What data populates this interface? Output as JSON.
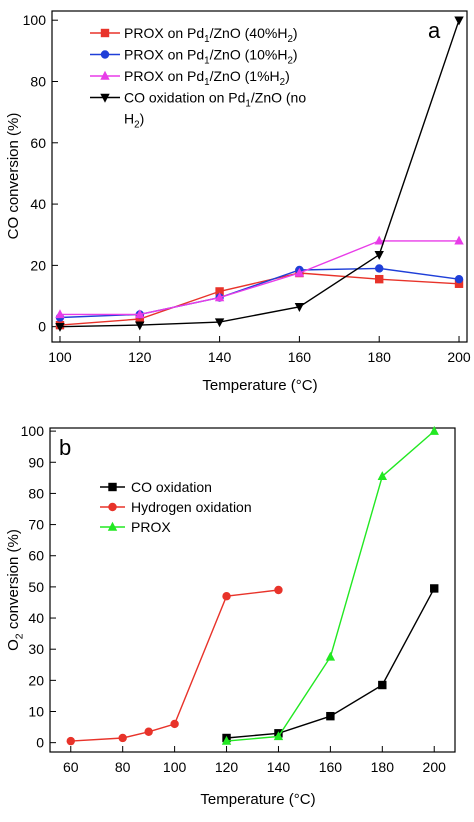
{
  "chart_data": [
    {
      "type": "line",
      "panel_label": "a",
      "xlabel": "Temperature (°C)",
      "ylabel": "CO conversion (%)",
      "xlim": [
        98,
        202
      ],
      "ylim": [
        -5,
        103
      ],
      "xticks": [
        100,
        120,
        140,
        160,
        180,
        200
      ],
      "yticks": [
        0,
        20,
        40,
        60,
        80,
        100
      ],
      "grid": false,
      "legend_position": "top-left",
      "series": [
        {
          "name": "PROX on Pd1/ZnO (40%H2)",
          "color": "#e8332a",
          "marker": "square",
          "x": [
            100,
            120,
            140,
            160,
            180,
            200
          ],
          "y": [
            0.5,
            2.5,
            11.5,
            17.5,
            15.5,
            14
          ]
        },
        {
          "name": "PROX on Pd1/ZnO (10%H2)",
          "color": "#1f3fd8",
          "marker": "circle",
          "x": [
            100,
            120,
            140,
            160,
            180,
            200
          ],
          "y": [
            3,
            4,
            9.5,
            18.5,
            19,
            15.5
          ]
        },
        {
          "name": "PROX on Pd1/ZnO (1%H2)",
          "color": "#e83ce8",
          "marker": "triangle-up",
          "x": [
            100,
            120,
            140,
            160,
            180,
            200
          ],
          "y": [
            4,
            4,
            9.5,
            17.5,
            28,
            28
          ]
        },
        {
          "name": "CO oxidation on Pd1/ZnO (no H2)",
          "color": "#000000",
          "marker": "triangle-down",
          "x": [
            100,
            120,
            140,
            160,
            180,
            200
          ],
          "y": [
            0,
            0.5,
            1.5,
            6.5,
            23.5,
            100
          ]
        }
      ]
    },
    {
      "type": "line",
      "panel_label": "b",
      "xlabel": "Temperature (°C)",
      "ylabel": "O2 conversion (%)",
      "xlim": [
        52,
        208
      ],
      "ylim": [
        -3,
        101
      ],
      "xticks": [
        60,
        80,
        100,
        120,
        140,
        160,
        180,
        200
      ],
      "yticks": [
        0,
        10,
        20,
        30,
        40,
        50,
        60,
        70,
        80,
        90,
        100
      ],
      "grid": false,
      "legend_position": "top-left",
      "series": [
        {
          "name": "CO oxidation",
          "color": "#000000",
          "marker": "square",
          "x": [
            120,
            140,
            160,
            180,
            200
          ],
          "y": [
            1.5,
            3,
            8.5,
            18.5,
            49.5
          ]
        },
        {
          "name": "Hydrogen oxidation",
          "color": "#e8332a",
          "marker": "circle",
          "x": [
            60,
            80,
            90,
            100,
            120,
            140
          ],
          "y": [
            0.5,
            1.5,
            3.5,
            6,
            47,
            49
          ]
        },
        {
          "name": "PROX",
          "color": "#22e822",
          "marker": "triangle-up",
          "x": [
            120,
            140,
            160,
            180,
            200
          ],
          "y": [
            0.5,
            2,
            27.5,
            85.5,
            100
          ]
        }
      ]
    }
  ]
}
